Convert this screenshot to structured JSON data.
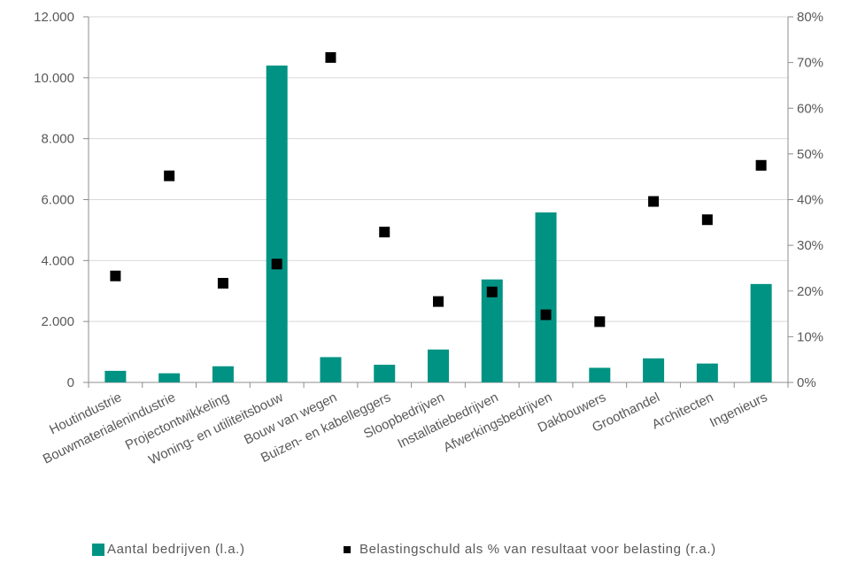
{
  "chart_data": {
    "type": "bar",
    "categories": [
      "Houtindustrie",
      "Bouwmaterialenindustrie",
      "Projectontwikkeling",
      "Woning- en utiliteitsbouw",
      "Bouw van wegen",
      "Buizen- en kabelleggers",
      "Sloopbedrijven",
      "Installatiebedrijven",
      "Afwerkingsbedrijven",
      "Dakbouwers",
      "Groothandel",
      "Architecten",
      "Ingenieurs"
    ],
    "series": [
      {
        "name": "Aantal bedrijven (l.a.)",
        "type": "bar",
        "axis": "left",
        "color": "#009383",
        "values": [
          380,
          300,
          530,
          10400,
          830,
          580,
          1080,
          3380,
          5580,
          480,
          790,
          620,
          3230
        ]
      },
      {
        "name": "Belastingschuld als % van resultaat voor belasting (r.a.)",
        "type": "scatter",
        "axis": "right",
        "color": "#000000",
        "values": [
          23.3,
          45.2,
          21.7,
          25.9,
          71.1,
          32.9,
          17.7,
          19.8,
          14.8,
          13.3,
          39.6,
          35.6,
          47.5
        ]
      }
    ],
    "y_left": {
      "min": 0,
      "max": 12000,
      "ticks": [
        "0",
        "2.000",
        "4.000",
        "6.000",
        "8.000",
        "10.000",
        "12.000"
      ]
    },
    "y_right": {
      "min": 0,
      "max": 80,
      "ticks": [
        "0%",
        "10%",
        "20%",
        "30%",
        "40%",
        "50%",
        "60%",
        "70%",
        "80%"
      ]
    },
    "grid": true,
    "legend_position": "bottom"
  },
  "legend": [
    {
      "label": "Aantal bedrijven (l.a.)",
      "color": "#009383"
    },
    {
      "label": "Belastingschuld als % van resultaat voor belasting (r.a.)",
      "color": "#000000"
    }
  ]
}
